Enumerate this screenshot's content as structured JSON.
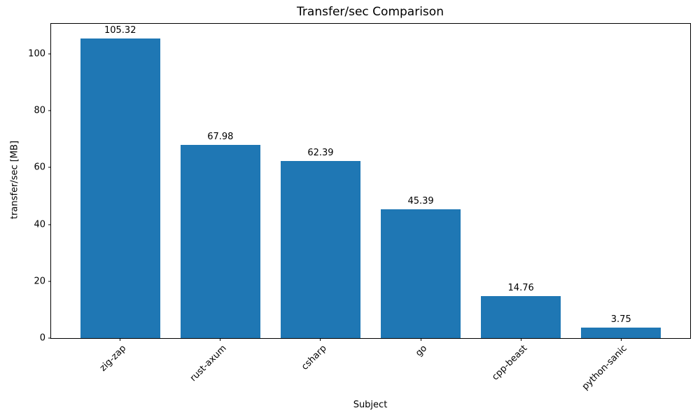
{
  "chart_data": {
    "type": "bar",
    "title": "Transfer/sec Comparison",
    "xlabel": "Subject",
    "ylabel": "transfer/sec [MB]",
    "categories": [
      "zig-zap",
      "rust-axum",
      "csharp",
      "go",
      "cpp-beast",
      "python-sanic"
    ],
    "values": [
      105.32,
      67.98,
      62.39,
      45.39,
      14.76,
      3.75
    ],
    "value_labels": [
      "105.32",
      "67.98",
      "62.39",
      "45.39",
      "14.76",
      "3.75"
    ],
    "yticks": [
      0,
      20,
      40,
      60,
      80,
      100
    ],
    "ytick_labels": [
      "0",
      "20",
      "40",
      "60",
      "80",
      "100"
    ],
    "ylim": [
      0,
      110.6
    ],
    "xlim": [
      -0.69,
      5.69
    ],
    "bar_width_units": 0.8,
    "bar_color": "#1f77b4",
    "grid": false,
    "legend": null,
    "xtick_label_rotation_deg": 45
  }
}
